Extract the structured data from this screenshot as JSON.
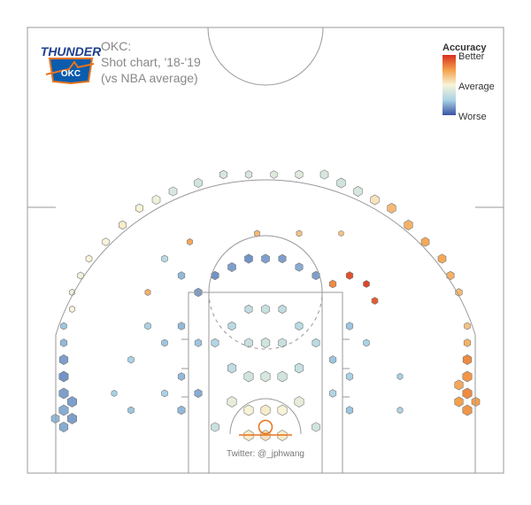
{
  "header": {
    "team": "OKC:",
    "subtitle": "Shot chart, '18-'19",
    "comparison": "(vs NBA average)",
    "logo_text": "THUNDER",
    "logo_badge": "OKC"
  },
  "legend": {
    "title": "Accuracy",
    "top_label": "Better",
    "mid_label": "Average",
    "bottom_label": "Worse",
    "placement": "top-right"
  },
  "credit": "Twitter: @_jphwang",
  "colors": {
    "better": "#d7301f",
    "above_average": "#f5a04a",
    "average": "#f7f4d8",
    "below_average": "#a9d3e6",
    "worse": "#3a52a3",
    "court_lines": "#999999",
    "rim": "#e8731a"
  },
  "chart_data": {
    "type": "heatmap",
    "description_scale": "accuracy relative to NBA average, -1 = worse, +1 = better",
    "x_range_ft": [
      -25,
      25
    ],
    "y_range_ft": [
      -5,
      42
    ],
    "hexes": [
      {
        "x": -24,
        "y": 8,
        "freq": 0.9,
        "acc": -0.7
      },
      {
        "x": -24,
        "y": 6,
        "freq": 1.0,
        "acc": -0.75
      },
      {
        "x": -24,
        "y": 4,
        "freq": 1.0,
        "acc": -0.7
      },
      {
        "x": -24,
        "y": 2,
        "freq": 1.0,
        "acc": -0.65
      },
      {
        "x": -23,
        "y": 3,
        "freq": 1.0,
        "acc": -0.7
      },
      {
        "x": -23,
        "y": 1,
        "freq": 1.0,
        "acc": -0.7
      },
      {
        "x": -25,
        "y": 1,
        "freq": 0.8,
        "acc": -0.6
      },
      {
        "x": -24,
        "y": 0,
        "freq": 0.9,
        "acc": -0.65
      },
      {
        "x": -24,
        "y": 10,
        "freq": 0.6,
        "acc": -0.6
      },
      {
        "x": -24,
        "y": 12,
        "freq": 0.5,
        "acc": -0.55
      },
      {
        "x": 24,
        "y": 8,
        "freq": 0.9,
        "acc": 0.6
      },
      {
        "x": 24,
        "y": 6,
        "freq": 1.0,
        "acc": 0.55
      },
      {
        "x": 24,
        "y": 4,
        "freq": 1.0,
        "acc": 0.6
      },
      {
        "x": 24,
        "y": 2,
        "freq": 1.0,
        "acc": 0.55
      },
      {
        "x": 23,
        "y": 3,
        "freq": 0.9,
        "acc": 0.5
      },
      {
        "x": 23,
        "y": 5,
        "freq": 0.9,
        "acc": 0.45
      },
      {
        "x": 25,
        "y": 3,
        "freq": 0.8,
        "acc": 0.5
      },
      {
        "x": 24,
        "y": 10,
        "freq": 0.6,
        "acc": 0.4
      },
      {
        "x": 24,
        "y": 12,
        "freq": 0.5,
        "acc": 0.3
      },
      {
        "x": 23,
        "y": 16,
        "freq": 0.6,
        "acc": 0.35
      },
      {
        "x": 22,
        "y": 18,
        "freq": 0.7,
        "acc": 0.4
      },
      {
        "x": 21,
        "y": 20,
        "freq": 0.8,
        "acc": 0.45
      },
      {
        "x": 19,
        "y": 22,
        "freq": 0.8,
        "acc": 0.45
      },
      {
        "x": 17,
        "y": 24,
        "freq": 0.9,
        "acc": 0.4
      },
      {
        "x": 15,
        "y": 26,
        "freq": 0.9,
        "acc": 0.35
      },
      {
        "x": 13,
        "y": 27,
        "freq": 0.9,
        "acc": 0.1
      },
      {
        "x": 11,
        "y": 28,
        "freq": 0.9,
        "acc": -0.2
      },
      {
        "x": 9,
        "y": 29,
        "freq": 0.9,
        "acc": -0.25
      },
      {
        "x": 7,
        "y": 30,
        "freq": 0.8,
        "acc": -0.2
      },
      {
        "x": 4,
        "y": 30,
        "freq": 0.7,
        "acc": -0.15
      },
      {
        "x": 1,
        "y": 30,
        "freq": 0.6,
        "acc": -0.15
      },
      {
        "x": -2,
        "y": 30,
        "freq": 0.6,
        "acc": -0.2
      },
      {
        "x": -5,
        "y": 30,
        "freq": 0.7,
        "acc": -0.2
      },
      {
        "x": -8,
        "y": 29,
        "freq": 0.8,
        "acc": -0.25
      },
      {
        "x": -11,
        "y": 28,
        "freq": 0.8,
        "acc": -0.2
      },
      {
        "x": -13,
        "y": 27,
        "freq": 0.8,
        "acc": -0.05
      },
      {
        "x": -15,
        "y": 26,
        "freq": 0.7,
        "acc": 0.0
      },
      {
        "x": -17,
        "y": 24,
        "freq": 0.7,
        "acc": 0.05
      },
      {
        "x": -19,
        "y": 22,
        "freq": 0.6,
        "acc": 0.0
      },
      {
        "x": -21,
        "y": 20,
        "freq": 0.5,
        "acc": 0.0
      },
      {
        "x": -22,
        "y": 18,
        "freq": 0.5,
        "acc": -0.05
      },
      {
        "x": -23,
        "y": 16,
        "freq": 0.4,
        "acc": -0.05
      },
      {
        "x": -23,
        "y": 14,
        "freq": 0.4,
        "acc": 0.0
      },
      {
        "x": -12,
        "y": 20,
        "freq": 0.5,
        "acc": -0.4
      },
      {
        "x": -10,
        "y": 18,
        "freq": 0.6,
        "acc": -0.6
      },
      {
        "x": -8,
        "y": 16,
        "freq": 0.7,
        "acc": -0.7
      },
      {
        "x": -6,
        "y": 18,
        "freq": 0.7,
        "acc": -0.75
      },
      {
        "x": -4,
        "y": 19,
        "freq": 0.8,
        "acc": -0.7
      },
      {
        "x": -2,
        "y": 20,
        "freq": 0.8,
        "acc": -0.75
      },
      {
        "x": 0,
        "y": 20,
        "freq": 0.8,
        "acc": -0.7
      },
      {
        "x": 2,
        "y": 20,
        "freq": 0.7,
        "acc": -0.7
      },
      {
        "x": 4,
        "y": 19,
        "freq": 0.7,
        "acc": -0.65
      },
      {
        "x": 6,
        "y": 18,
        "freq": 0.7,
        "acc": -0.7
      },
      {
        "x": 8,
        "y": 17,
        "freq": 0.6,
        "acc": 0.6
      },
      {
        "x": 10,
        "y": 18,
        "freq": 0.6,
        "acc": 0.85
      },
      {
        "x": 12,
        "y": 17,
        "freq": 0.5,
        "acc": 0.9
      },
      {
        "x": 13,
        "y": 15,
        "freq": 0.5,
        "acc": 0.8
      },
      {
        "x": -10,
        "y": 12,
        "freq": 0.6,
        "acc": -0.6
      },
      {
        "x": -12,
        "y": 10,
        "freq": 0.5,
        "acc": -0.55
      },
      {
        "x": -14,
        "y": 12,
        "freq": 0.5,
        "acc": -0.5
      },
      {
        "x": -8,
        "y": 10,
        "freq": 0.6,
        "acc": -0.55
      },
      {
        "x": -10,
        "y": 6,
        "freq": 0.6,
        "acc": -0.6
      },
      {
        "x": -8,
        "y": 4,
        "freq": 0.7,
        "acc": -0.65
      },
      {
        "x": -10,
        "y": 2,
        "freq": 0.7,
        "acc": -0.6
      },
      {
        "x": -12,
        "y": 4,
        "freq": 0.5,
        "acc": -0.5
      },
      {
        "x": 10,
        "y": 12,
        "freq": 0.6,
        "acc": -0.55
      },
      {
        "x": 12,
        "y": 10,
        "freq": 0.5,
        "acc": -0.5
      },
      {
        "x": 8,
        "y": 8,
        "freq": 0.6,
        "acc": -0.55
      },
      {
        "x": 10,
        "y": 6,
        "freq": 0.6,
        "acc": -0.5
      },
      {
        "x": 8,
        "y": 4,
        "freq": 0.6,
        "acc": -0.45
      },
      {
        "x": 10,
        "y": 2,
        "freq": 0.6,
        "acc": -0.55
      },
      {
        "x": -4,
        "y": 12,
        "freq": 0.7,
        "acc": -0.4
      },
      {
        "x": -2,
        "y": 14,
        "freq": 0.7,
        "acc": -0.35
      },
      {
        "x": 0,
        "y": 14,
        "freq": 0.8,
        "acc": -0.3
      },
      {
        "x": 2,
        "y": 14,
        "freq": 0.7,
        "acc": -0.35
      },
      {
        "x": 4,
        "y": 12,
        "freq": 0.7,
        "acc": -0.4
      },
      {
        "x": -2,
        "y": 10,
        "freq": 0.8,
        "acc": -0.3
      },
      {
        "x": 0,
        "y": 10,
        "freq": 0.9,
        "acc": -0.25
      },
      {
        "x": 2,
        "y": 10,
        "freq": 0.8,
        "acc": -0.3
      },
      {
        "x": -4,
        "y": 7,
        "freq": 0.9,
        "acc": -0.35
      },
      {
        "x": -2,
        "y": 6,
        "freq": 1.0,
        "acc": -0.25
      },
      {
        "x": 0,
        "y": 6,
        "freq": 1.0,
        "acc": -0.2
      },
      {
        "x": 2,
        "y": 6,
        "freq": 1.0,
        "acc": -0.25
      },
      {
        "x": 4,
        "y": 7,
        "freq": 0.9,
        "acc": -0.3
      },
      {
        "x": -4,
        "y": 3,
        "freq": 1.0,
        "acc": -0.1
      },
      {
        "x": -2,
        "y": 2,
        "freq": 1.0,
        "acc": 0.0
      },
      {
        "x": 0,
        "y": 2,
        "freq": 1.0,
        "acc": 0.05
      },
      {
        "x": 2,
        "y": 2,
        "freq": 1.0,
        "acc": 0.0
      },
      {
        "x": 4,
        "y": 3,
        "freq": 1.0,
        "acc": -0.1
      },
      {
        "x": -2,
        "y": -1,
        "freq": 1.0,
        "acc": 0.05
      },
      {
        "x": 0,
        "y": -1,
        "freq": 1.0,
        "acc": 0.1
      },
      {
        "x": 2,
        "y": -1,
        "freq": 1.0,
        "acc": 0.05
      },
      {
        "x": -6,
        "y": 0,
        "freq": 0.8,
        "acc": -0.3
      },
      {
        "x": 6,
        "y": 0,
        "freq": 0.8,
        "acc": -0.25
      },
      {
        "x": -6,
        "y": 10,
        "freq": 0.7,
        "acc": -0.45
      },
      {
        "x": 6,
        "y": 10,
        "freq": 0.7,
        "acc": -0.4
      },
      {
        "x": -16,
        "y": 8,
        "freq": 0.5,
        "acc": -0.5
      },
      {
        "x": -18,
        "y": 4,
        "freq": 0.4,
        "acc": -0.5
      },
      {
        "x": -16,
        "y": 2,
        "freq": 0.5,
        "acc": -0.55
      },
      {
        "x": 16,
        "y": 6,
        "freq": 0.4,
        "acc": -0.5
      },
      {
        "x": 16,
        "y": 2,
        "freq": 0.4,
        "acc": -0.45
      },
      {
        "x": -14,
        "y": 16,
        "freq": 0.4,
        "acc": 0.4
      },
      {
        "x": -9,
        "y": 22,
        "freq": 0.4,
        "acc": 0.45
      },
      {
        "x": 4,
        "y": 23,
        "freq": 0.4,
        "acc": 0.3
      },
      {
        "x": -1,
        "y": 23,
        "freq": 0.4,
        "acc": 0.35
      },
      {
        "x": 9,
        "y": 23,
        "freq": 0.3,
        "acc": 0.3
      }
    ]
  }
}
